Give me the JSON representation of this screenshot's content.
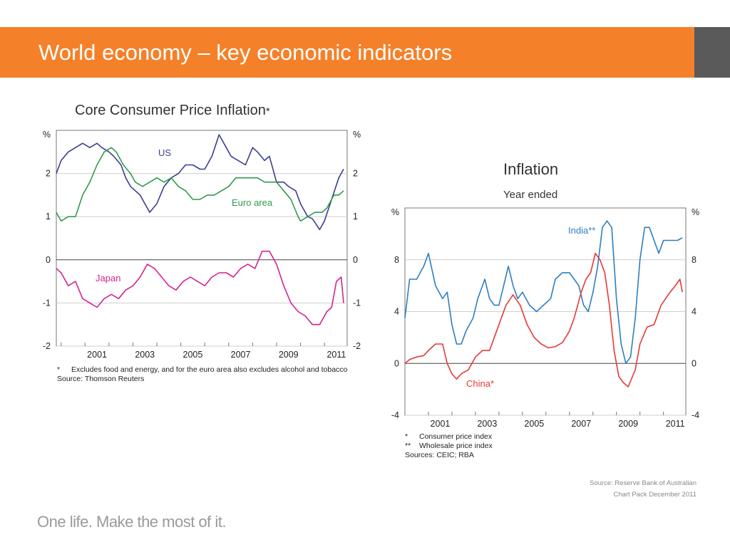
{
  "slide": {
    "title": "World economy – key economic indicators",
    "tagline": "One life. Make the most of it.",
    "source_line1": "Source: Reserve Bank of Australian",
    "source_line2": "Chart Pack December 2011",
    "colors": {
      "banner": "#f4812a",
      "banner_dark": "#5a5a5a"
    }
  },
  "chart_data": [
    {
      "type": "line",
      "title": "Core Consumer Price Inflation",
      "title_mark": "*",
      "ylabel_left": "%",
      "ylabel_right": "%",
      "ylim": [
        -2,
        3
      ],
      "yticks": [
        -2,
        -1,
        0,
        1,
        2
      ],
      "xlim": [
        1999.8,
        2011.95
      ],
      "xticks": [
        2001,
        2003,
        2005,
        2007,
        2009,
        2011
      ],
      "grid": true,
      "footnotes": [
        {
          "mark": "*",
          "text": "Excludes food and energy, and for the euro area also excludes alcohol and tobacco"
        },
        {
          "mark": "",
          "text": "Source: Thomson Reuters"
        }
      ],
      "series": [
        {
          "name": "US",
          "color": "#3b3d8f",
          "x": [
            1999.8,
            2000.0,
            2000.3,
            2000.6,
            2000.9,
            2001.2,
            2001.5,
            2001.7,
            2002.0,
            2002.2,
            2002.5,
            2002.7,
            2002.9,
            2003.1,
            2003.3,
            2003.5,
            2003.7,
            2004.0,
            2004.3,
            2004.6,
            2004.9,
            2005.2,
            2005.5,
            2005.8,
            2006.0,
            2006.3,
            2006.6,
            2006.9,
            2007.1,
            2007.4,
            2007.7,
            2008.0,
            2008.2,
            2008.5,
            2008.7,
            2009.0,
            2009.3,
            2009.5,
            2009.8,
            2010.0,
            2010.3,
            2010.5,
            2010.8,
            2011.0,
            2011.3,
            2011.6,
            2011.8
          ],
          "values": [
            2.0,
            2.3,
            2.5,
            2.6,
            2.7,
            2.6,
            2.7,
            2.6,
            2.5,
            2.4,
            2.2,
            1.9,
            1.7,
            1.6,
            1.5,
            1.3,
            1.1,
            1.3,
            1.7,
            1.9,
            2.0,
            2.2,
            2.2,
            2.1,
            2.1,
            2.4,
            2.9,
            2.6,
            2.4,
            2.3,
            2.2,
            2.6,
            2.5,
            2.3,
            2.4,
            1.8,
            1.8,
            1.7,
            1.6,
            1.3,
            1.0,
            0.95,
            0.7,
            0.9,
            1.4,
            1.9,
            2.1
          ]
        },
        {
          "name": "Euro area",
          "color": "#2e9c4c",
          "x": [
            1999.8,
            2000.0,
            2000.3,
            2000.6,
            2000.9,
            2001.2,
            2001.5,
            2001.8,
            2002.1,
            2002.3,
            2002.6,
            2002.9,
            2003.1,
            2003.4,
            2003.7,
            2004.0,
            2004.3,
            2004.6,
            2004.9,
            2005.2,
            2005.5,
            2005.8,
            2006.1,
            2006.4,
            2006.7,
            2007.0,
            2007.3,
            2007.6,
            2007.9,
            2008.2,
            2008.5,
            2008.8,
            2009.0,
            2009.3,
            2009.6,
            2009.9,
            2010.0,
            2010.3,
            2010.6,
            2010.9,
            2011.1,
            2011.4,
            2011.6,
            2011.8
          ],
          "values": [
            1.1,
            0.9,
            1.0,
            1.0,
            1.5,
            1.8,
            2.2,
            2.5,
            2.6,
            2.5,
            2.2,
            2.0,
            1.8,
            1.7,
            1.8,
            1.9,
            1.8,
            1.9,
            1.7,
            1.6,
            1.4,
            1.4,
            1.5,
            1.5,
            1.6,
            1.7,
            1.9,
            1.9,
            1.9,
            1.9,
            1.8,
            1.8,
            1.8,
            1.6,
            1.4,
            1.0,
            0.9,
            1.0,
            1.1,
            1.1,
            1.2,
            1.5,
            1.5,
            1.6
          ]
        },
        {
          "name": "Japan",
          "color": "#d4238e",
          "x": [
            1999.8,
            2000.0,
            2000.3,
            2000.6,
            2000.9,
            2001.2,
            2001.5,
            2001.8,
            2002.1,
            2002.4,
            2002.7,
            2003.0,
            2003.3,
            2003.6,
            2003.9,
            2004.2,
            2004.5,
            2004.8,
            2005.1,
            2005.4,
            2005.7,
            2006.0,
            2006.3,
            2006.6,
            2006.9,
            2007.2,
            2007.5,
            2007.8,
            2008.1,
            2008.4,
            2008.7,
            2009.0,
            2009.3,
            2009.6,
            2009.9,
            2010.2,
            2010.5,
            2010.8,
            2011.1,
            2011.3,
            2011.5,
            2011.7,
            2011.8
          ],
          "values": [
            -0.2,
            -0.3,
            -0.6,
            -0.5,
            -0.9,
            -1.0,
            -1.1,
            -0.9,
            -0.8,
            -0.9,
            -0.7,
            -0.6,
            -0.4,
            -0.1,
            -0.2,
            -0.4,
            -0.6,
            -0.7,
            -0.5,
            -0.4,
            -0.5,
            -0.6,
            -0.4,
            -0.3,
            -0.3,
            -0.4,
            -0.2,
            -0.1,
            -0.2,
            0.2,
            0.2,
            -0.1,
            -0.6,
            -1.0,
            -1.2,
            -1.3,
            -1.5,
            -1.5,
            -1.2,
            -1.1,
            -0.5,
            -0.4,
            -1.0
          ]
        }
      ]
    },
    {
      "type": "line",
      "title": "Inflation",
      "subtitle": "Year ended",
      "ylabel_left": "%",
      "ylabel_right": "%",
      "ylim": [
        -4,
        12
      ],
      "yticks": [
        -4,
        0,
        4,
        8
      ],
      "xlim": [
        2000.0,
        2011.95
      ],
      "xticks": [
        2001,
        2003,
        2005,
        2007,
        2009,
        2011
      ],
      "grid": true,
      "footnotes": [
        {
          "mark": "*",
          "text": "Consumer price index"
        },
        {
          "mark": "**",
          "text": "Wholesale price index"
        },
        {
          "mark": "",
          "text": "Sources: CEIC; RBA"
        }
      ],
      "series": [
        {
          "name": "India**",
          "color": "#2e7ec1",
          "x": [
            2000.0,
            2000.2,
            2000.5,
            2000.8,
            2001.0,
            2001.3,
            2001.6,
            2001.8,
            2002.0,
            2002.2,
            2002.4,
            2002.6,
            2002.9,
            2003.1,
            2003.4,
            2003.6,
            2003.8,
            2004.0,
            2004.2,
            2004.4,
            2004.6,
            2004.8,
            2005.0,
            2005.3,
            2005.6,
            2005.9,
            2006.2,
            2006.4,
            2006.7,
            2007.0,
            2007.2,
            2007.4,
            2007.6,
            2007.8,
            2008.0,
            2008.2,
            2008.4,
            2008.6,
            2008.8,
            2009.0,
            2009.2,
            2009.4,
            2009.6,
            2009.8,
            2010.0,
            2010.2,
            2010.4,
            2010.6,
            2010.8,
            2011.0,
            2011.3,
            2011.6,
            2011.8
          ],
          "values": [
            3.5,
            6.5,
            6.5,
            7.5,
            8.5,
            6.0,
            5.0,
            5.5,
            3.0,
            1.5,
            1.5,
            2.5,
            3.5,
            5.0,
            6.5,
            5.0,
            4.5,
            4.5,
            6.0,
            7.5,
            6.0,
            5.0,
            5.5,
            4.5,
            4.0,
            4.5,
            5.0,
            6.5,
            7.0,
            7.0,
            6.5,
            6.0,
            4.5,
            4.0,
            5.5,
            7.5,
            10.5,
            11.0,
            10.5,
            5.0,
            1.5,
            0.0,
            0.5,
            3.5,
            8.0,
            10.5,
            10.5,
            9.5,
            8.5,
            9.5,
            9.5,
            9.5,
            9.7
          ]
        },
        {
          "name": "China*",
          "color": "#e53935",
          "x": [
            2000.0,
            2000.2,
            2000.5,
            2000.8,
            2001.0,
            2001.3,
            2001.6,
            2001.8,
            2002.0,
            2002.2,
            2002.4,
            2002.7,
            2003.0,
            2003.3,
            2003.6,
            2003.9,
            2004.1,
            2004.3,
            2004.6,
            2004.9,
            2005.2,
            2005.5,
            2005.8,
            2006.1,
            2006.4,
            2006.7,
            2007.0,
            2007.2,
            2007.5,
            2007.7,
            2007.9,
            2008.1,
            2008.3,
            2008.5,
            2008.7,
            2008.9,
            2009.1,
            2009.3,
            2009.5,
            2009.8,
            2010.0,
            2010.3,
            2010.6,
            2010.9,
            2011.2,
            2011.5,
            2011.7,
            2011.8
          ],
          "values": [
            0.0,
            0.3,
            0.5,
            0.6,
            1.0,
            1.5,
            1.5,
            0.0,
            -0.8,
            -1.2,
            -0.8,
            -0.5,
            0.5,
            1.0,
            1.0,
            2.5,
            3.5,
            4.5,
            5.3,
            4.5,
            3.0,
            2.0,
            1.5,
            1.2,
            1.3,
            1.6,
            2.5,
            3.5,
            5.5,
            6.5,
            7.0,
            8.5,
            8.0,
            7.0,
            4.5,
            1.0,
            -1.0,
            -1.5,
            -1.8,
            -0.5,
            1.5,
            2.8,
            3.0,
            4.5,
            5.3,
            6.0,
            6.5,
            5.5
          ]
        }
      ]
    }
  ]
}
